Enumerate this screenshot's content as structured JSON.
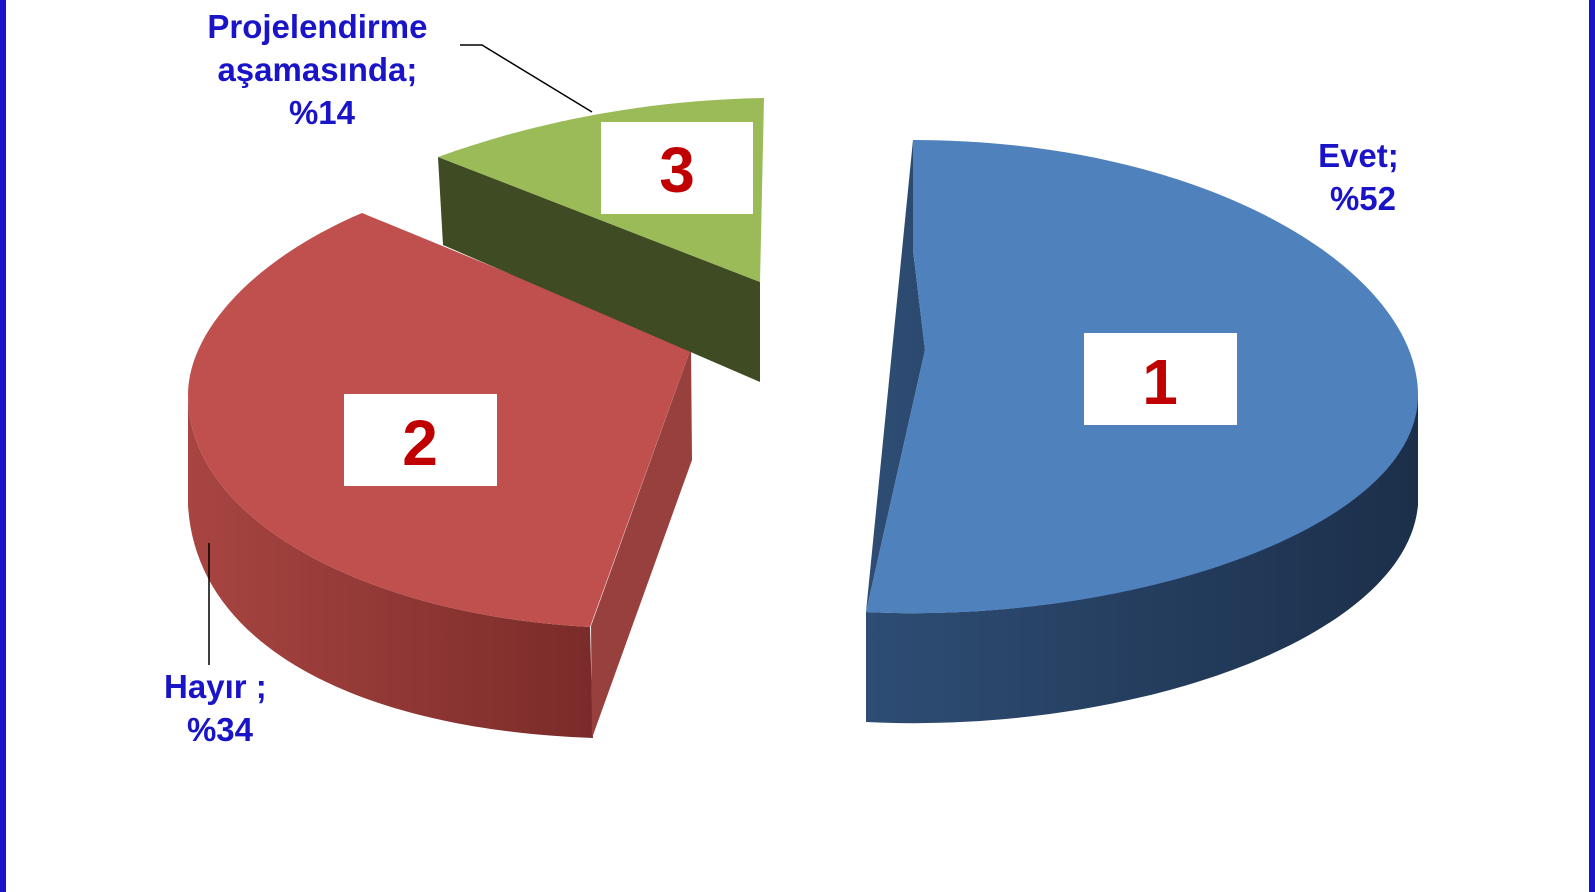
{
  "chart_data": {
    "type": "pie",
    "style": "3d-exploded",
    "slices": [
      {
        "number": "1",
        "label_lines": [
          "Evet;",
          "%52"
        ],
        "value": 52,
        "color": "#4f81bd"
      },
      {
        "number": "2",
        "label_lines": [
          "Hayır ;",
          "%34"
        ],
        "value": 34,
        "color": "#c0504d"
      },
      {
        "number": "3",
        "label_lines": [
          "Projelendirme",
          "aşamasında;",
          "%14"
        ],
        "value": 14,
        "color": "#9bbb59"
      }
    ]
  },
  "colors": {
    "frame_border": "#1a14c8",
    "label_text": "#1a14c8",
    "number_text": "#c00000",
    "number_box": "#ffffff"
  }
}
